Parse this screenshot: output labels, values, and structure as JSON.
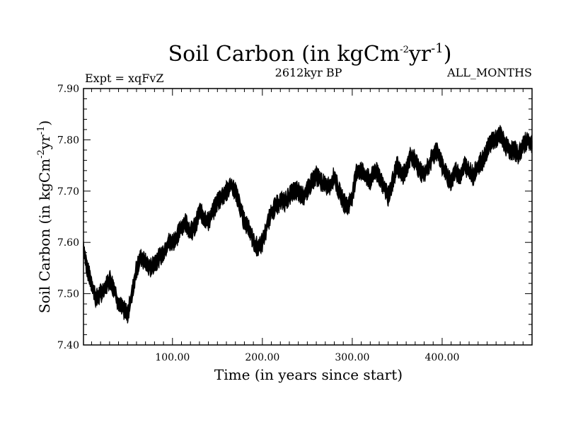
{
  "chart_data": {
    "type": "line",
    "title": "Soil Carbon (in kgCm",
    "title_sup1": "-2",
    "title_mid": "yr",
    "title_sup2": "-1",
    "title_end": ")",
    "subtitle_left": "Expt = xqFvZ",
    "subtitle_center": "2612kyr BP",
    "subtitle_right": "ALL_MONTHS",
    "xlabel": "Time (in years since start)",
    "ylabel": "Soil Carbon (in kgCm",
    "ylabel_sup1": "-2",
    "ylabel_mid": "yr",
    "ylabel_sup2": "-1",
    "ylabel_end": ")",
    "xlim": [
      1,
      500
    ],
    "ylim": [
      7.4,
      7.9
    ],
    "xticks": [
      100,
      200,
      300,
      400
    ],
    "xtick_labels": [
      "100.00",
      "200.00",
      "300.00",
      "400.00"
    ],
    "yticks": [
      7.4,
      7.5,
      7.6,
      7.7,
      7.8,
      7.9
    ],
    "ytick_labels": [
      "7.40",
      "7.50",
      "7.60",
      "7.70",
      "7.80",
      "7.90"
    ],
    "grid": false,
    "line_color": "#000000",
    "band_halfwidth": 0.012,
    "series": [
      {
        "name": "Soil Carbon",
        "x": [
          1,
          5,
          10,
          15,
          20,
          25,
          30,
          35,
          40,
          45,
          50,
          55,
          60,
          65,
          70,
          75,
          80,
          85,
          90,
          95,
          100,
          105,
          110,
          115,
          120,
          125,
          130,
          135,
          140,
          145,
          150,
          155,
          160,
          165,
          170,
          175,
          180,
          185,
          190,
          195,
          200,
          205,
          210,
          215,
          220,
          225,
          230,
          235,
          240,
          245,
          250,
          255,
          260,
          265,
          270,
          275,
          280,
          285,
          290,
          295,
          300,
          305,
          310,
          315,
          320,
          325,
          330,
          335,
          340,
          345,
          350,
          355,
          360,
          365,
          370,
          375,
          380,
          385,
          390,
          395,
          400,
          405,
          410,
          415,
          420,
          425,
          430,
          435,
          440,
          445,
          450,
          455,
          460,
          465,
          470,
          475,
          480,
          485,
          490,
          495,
          500
        ],
        "values": [
          7.59,
          7.55,
          7.52,
          7.49,
          7.5,
          7.51,
          7.53,
          7.51,
          7.48,
          7.47,
          7.46,
          7.5,
          7.55,
          7.57,
          7.56,
          7.55,
          7.56,
          7.57,
          7.58,
          7.6,
          7.6,
          7.61,
          7.63,
          7.64,
          7.62,
          7.63,
          7.66,
          7.65,
          7.64,
          7.66,
          7.68,
          7.69,
          7.7,
          7.71,
          7.7,
          7.67,
          7.64,
          7.63,
          7.6,
          7.59,
          7.6,
          7.63,
          7.66,
          7.67,
          7.68,
          7.68,
          7.69,
          7.7,
          7.7,
          7.69,
          7.7,
          7.72,
          7.73,
          7.72,
          7.71,
          7.71,
          7.73,
          7.7,
          7.68,
          7.67,
          7.69,
          7.74,
          7.74,
          7.73,
          7.72,
          7.74,
          7.73,
          7.71,
          7.69,
          7.72,
          7.75,
          7.73,
          7.74,
          7.77,
          7.76,
          7.74,
          7.73,
          7.75,
          7.77,
          7.78,
          7.75,
          7.73,
          7.72,
          7.74,
          7.73,
          7.75,
          7.74,
          7.73,
          7.75,
          7.76,
          7.78,
          7.8,
          7.8,
          7.81,
          7.79,
          7.78,
          7.78,
          7.77,
          7.79,
          7.8,
          7.79
        ]
      }
    ]
  }
}
